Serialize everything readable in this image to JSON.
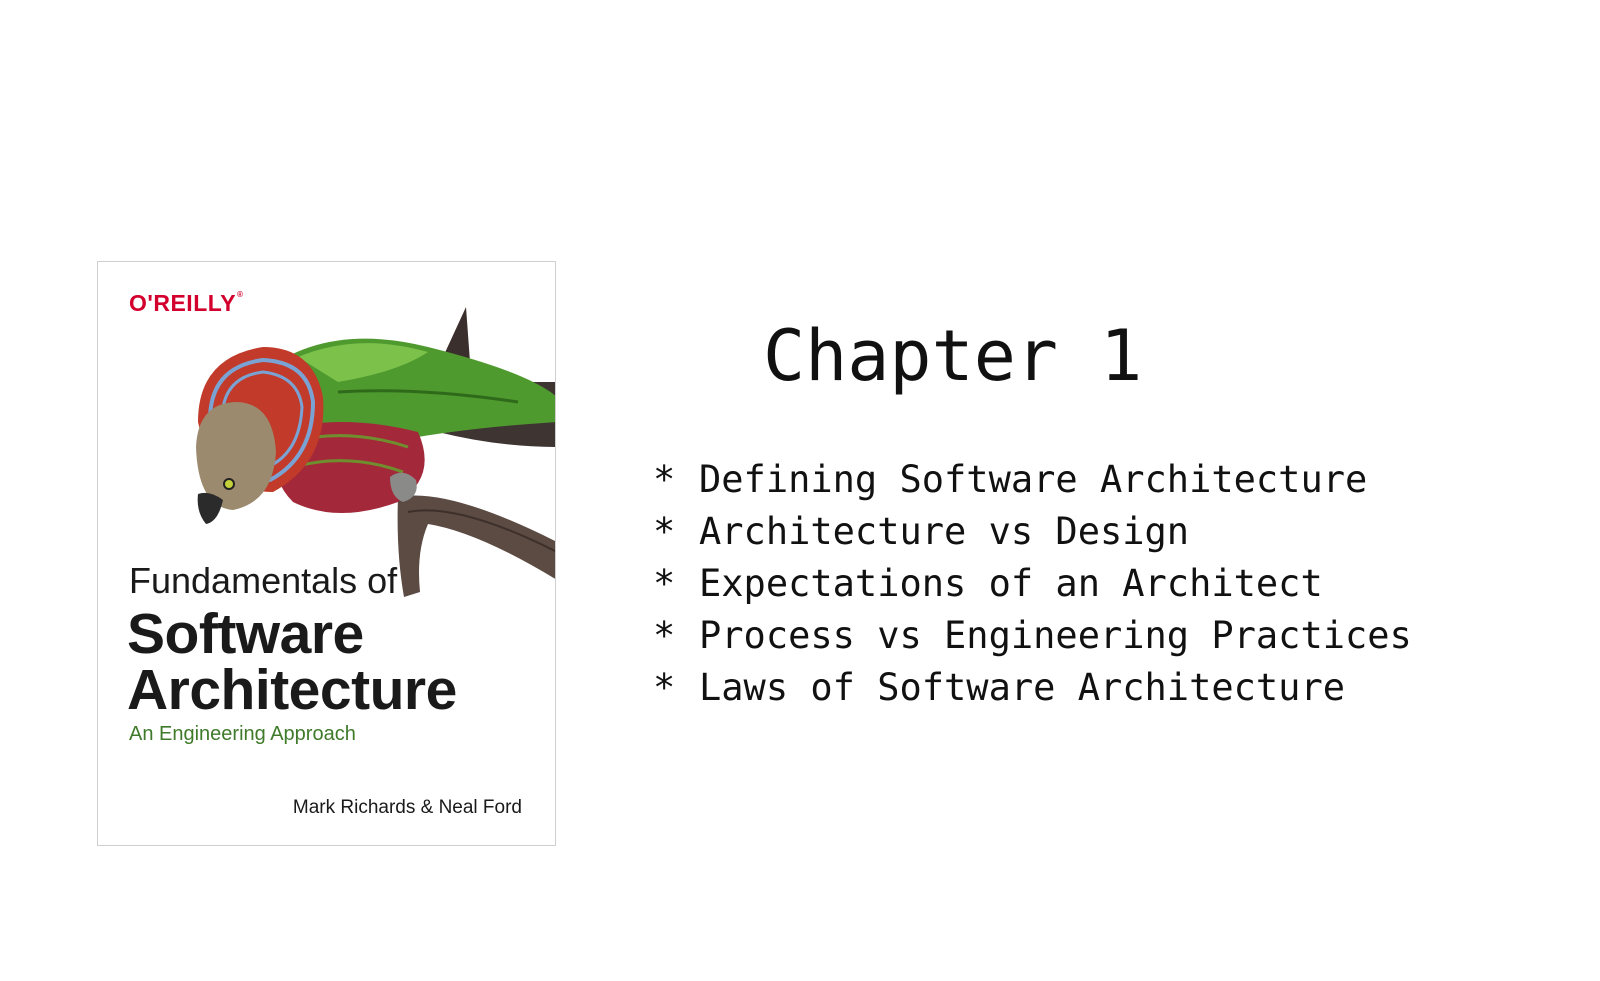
{
  "book": {
    "publisher": "O'REILLY",
    "publisher_mark": "®",
    "title_line1": "Fundamentals of",
    "title_line2": "Software",
    "title_line3": "Architecture",
    "subtitle": "An Engineering Approach",
    "authors": "Mark Richards & Neal Ford",
    "colors": {
      "publisher": "#d3002d",
      "subtitle": "#3f7a2a"
    }
  },
  "chapter": {
    "heading": "Chapter 1",
    "bullet_char": "*",
    "topics": [
      "Defining Software Architecture",
      "Architecture vs Design",
      "Expectations of an Architect",
      "Process vs Engineering Practices",
      "Laws of Software Architecture"
    ]
  }
}
